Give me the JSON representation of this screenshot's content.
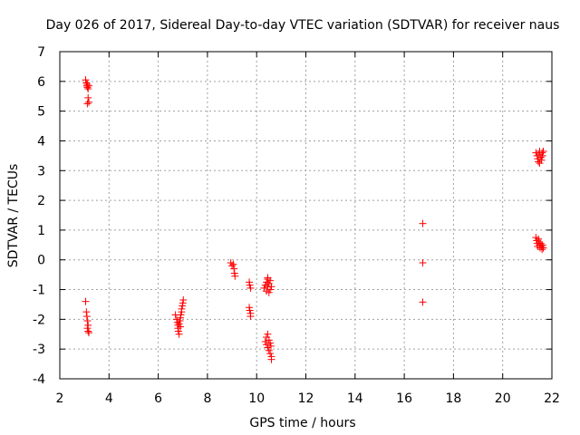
{
  "chart_data": {
    "type": "scatter",
    "title": "Day 026 of 2017, Sidereal Day-to-day VTEC variation (SDTVAR) for receiver naus",
    "xlabel": "GPS time / hours",
    "ylabel": "SDTVAR / TECUs",
    "xlim": [
      2,
      22
    ],
    "ylim": [
      -4,
      7
    ],
    "xticks": [
      2,
      4,
      6,
      8,
      10,
      12,
      14,
      16,
      18,
      20,
      22
    ],
    "yticks": [
      -4,
      -3,
      -2,
      -1,
      0,
      1,
      2,
      3,
      4,
      5,
      6,
      7
    ],
    "grid": true,
    "marker": "+",
    "color": "#ff0000",
    "series": [
      {
        "name": "SDTVAR",
        "points": [
          [
            3.05,
            6.05
          ],
          [
            3.08,
            5.95
          ],
          [
            3.1,
            5.85
          ],
          [
            3.12,
            5.8
          ],
          [
            3.15,
            5.75
          ],
          [
            3.12,
            5.9
          ],
          [
            3.18,
            5.85
          ],
          [
            3.15,
            5.45
          ],
          [
            3.18,
            5.3
          ],
          [
            3.12,
            5.25
          ],
          [
            3.05,
            -1.4
          ],
          [
            3.08,
            -1.75
          ],
          [
            3.1,
            -1.9
          ],
          [
            3.12,
            -2.05
          ],
          [
            3.15,
            -2.2
          ],
          [
            3.12,
            -2.3
          ],
          [
            3.15,
            -2.4
          ],
          [
            3.18,
            -2.45
          ],
          [
            6.7,
            -1.85
          ],
          [
            6.75,
            -2.0
          ],
          [
            6.78,
            -2.1
          ],
          [
            6.8,
            -2.2
          ],
          [
            6.8,
            -2.3
          ],
          [
            6.82,
            -2.4
          ],
          [
            6.85,
            -2.5
          ],
          [
            6.85,
            -2.15
          ],
          [
            6.88,
            -2.05
          ],
          [
            6.9,
            -1.95
          ],
          [
            6.92,
            -1.85
          ],
          [
            6.95,
            -1.75
          ],
          [
            6.95,
            -1.65
          ],
          [
            6.98,
            -1.55
          ],
          [
            7.0,
            -1.45
          ],
          [
            7.02,
            -1.35
          ],
          [
            6.9,
            -2.25
          ],
          [
            8.95,
            -0.1
          ],
          [
            9.0,
            -0.2
          ],
          [
            9.05,
            -0.15
          ],
          [
            9.08,
            -0.3
          ],
          [
            9.1,
            -0.45
          ],
          [
            9.12,
            -0.55
          ],
          [
            9.7,
            -0.75
          ],
          [
            9.72,
            -0.85
          ],
          [
            9.75,
            -0.95
          ],
          [
            9.7,
            -1.6
          ],
          [
            9.72,
            -1.7
          ],
          [
            9.75,
            -1.8
          ],
          [
            9.75,
            -1.9
          ],
          [
            10.3,
            -0.95
          ],
          [
            10.35,
            -0.85
          ],
          [
            10.4,
            -0.75
          ],
          [
            10.4,
            -1.05
          ],
          [
            10.45,
            -0.65
          ],
          [
            10.45,
            -0.9
          ],
          [
            10.5,
            -1.1
          ],
          [
            10.5,
            -0.8
          ],
          [
            10.55,
            -0.7
          ],
          [
            10.55,
            -1.0
          ],
          [
            10.6,
            -0.9
          ],
          [
            10.45,
            -0.6
          ],
          [
            10.35,
            -2.75
          ],
          [
            10.4,
            -2.85
          ],
          [
            10.4,
            -2.6
          ],
          [
            10.45,
            -2.5
          ],
          [
            10.45,
            -2.95
          ],
          [
            10.5,
            -3.05
          ],
          [
            10.5,
            -2.7
          ],
          [
            10.55,
            -3.15
          ],
          [
            10.55,
            -2.8
          ],
          [
            10.6,
            -3.25
          ],
          [
            10.6,
            -3.35
          ],
          [
            10.58,
            -2.9
          ],
          [
            16.75,
            1.22
          ],
          [
            16.75,
            -0.1
          ],
          [
            16.75,
            -1.42
          ],
          [
            21.35,
            3.6
          ],
          [
            21.4,
            3.5
          ],
          [
            21.42,
            3.4
          ],
          [
            21.45,
            3.3
          ],
          [
            21.48,
            3.55
          ],
          [
            21.5,
            3.65
          ],
          [
            21.5,
            3.25
          ],
          [
            21.55,
            3.45
          ],
          [
            21.58,
            3.35
          ],
          [
            21.6,
            3.6
          ],
          [
            21.62,
            3.5
          ],
          [
            21.65,
            3.65
          ],
          [
            21.35,
            0.75
          ],
          [
            21.38,
            0.65
          ],
          [
            21.4,
            0.55
          ],
          [
            21.42,
            0.45
          ],
          [
            21.45,
            0.7
          ],
          [
            21.48,
            0.6
          ],
          [
            21.5,
            0.5
          ],
          [
            21.52,
            0.4
          ],
          [
            21.55,
            0.55
          ],
          [
            21.58,
            0.45
          ],
          [
            21.6,
            0.35
          ],
          [
            21.62,
            0.5
          ],
          [
            21.65,
            0.4
          ]
        ]
      }
    ]
  }
}
